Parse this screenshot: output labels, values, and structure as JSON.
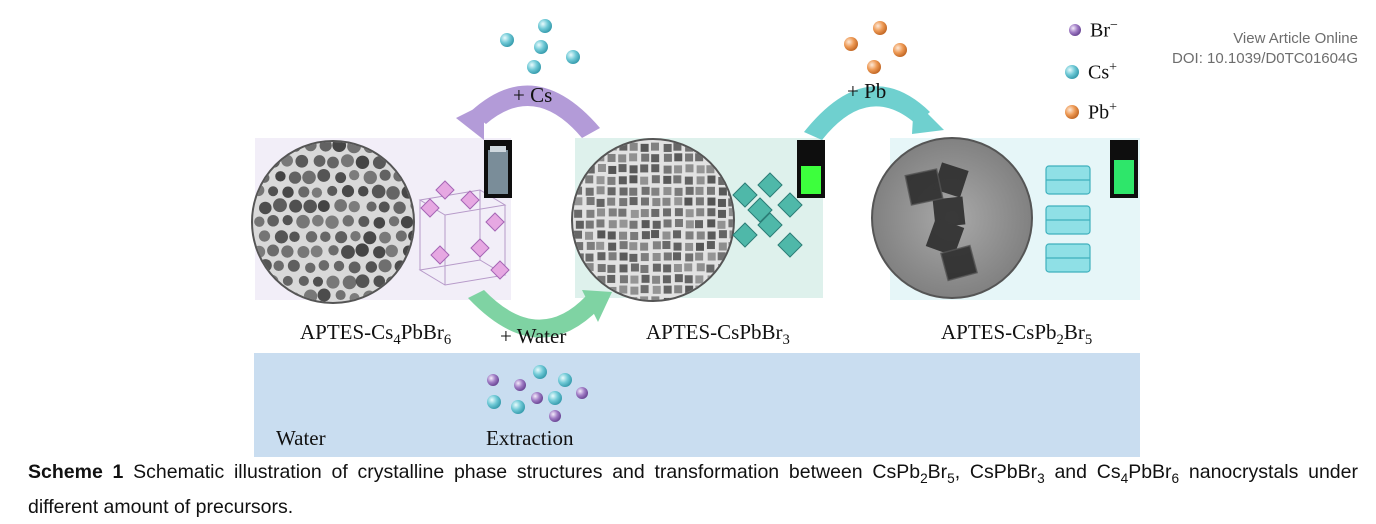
{
  "header": {
    "view_online": "View Article Online",
    "doi": "DOI: 10.1039/D0TC01604G"
  },
  "figure": {
    "colors": {
      "cs_ion": "#6fc9d6",
      "br_ion": "#a07cc5",
      "pb_ion": "#ee9a55",
      "cs_arrow": "#b39bd8",
      "water_arrow": "#7fd3a3",
      "pb_arrow": "#6fd0cf",
      "water_band": "#c9ddf0",
      "panel_left": "#f2eef8",
      "panel_mid": "#def1ec",
      "panel_right": "#e6f6f8",
      "emission_green": "#3dff3d"
    },
    "legend": [
      {
        "symbol": "Br",
        "charge": "−",
        "ion": "br"
      },
      {
        "symbol": "Cs",
        "charge": "+",
        "ion": "cs"
      },
      {
        "symbol": "Pb",
        "charge": "+",
        "ion": "pb"
      }
    ],
    "arrows": {
      "cs": "+ Cs",
      "pb": "+ Pb",
      "water": "+ Water"
    },
    "samples": [
      {
        "prefix": "APTES-Cs",
        "sub1": "4",
        "mid": "PbBr",
        "sub2": "6"
      },
      {
        "prefix": "APTES-CsPbBr",
        "sub1": "3",
        "mid": "",
        "sub2": ""
      },
      {
        "prefix": "APTES-CsPb",
        "sub1": "2",
        "mid": "Br",
        "sub2": "5"
      }
    ],
    "water_label": "Water",
    "extraction_label": "Extraction"
  },
  "caption": {
    "label": "Scheme 1",
    "text_1": " Schematic illustration of crystalline phase structures and transformation between CsPb",
    "s1": "2",
    "text_2": "Br",
    "s2": "5",
    "text_3": ", CsPbBr",
    "s3": "3",
    "text_4": " and Cs",
    "s4": "4",
    "text_5": "PbBr",
    "s5": "6",
    "text_6": " nanocrystals under different amount of precursors."
  }
}
